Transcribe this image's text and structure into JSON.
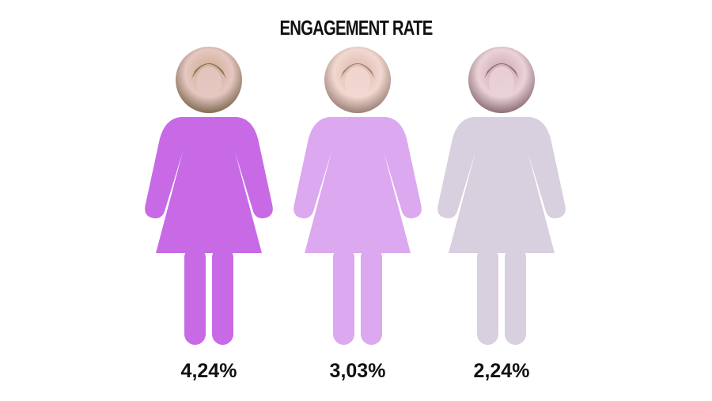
{
  "chart_data": {
    "type": "pictograph",
    "title": "ENGAGEMENT RATE",
    "categories": [
      "",
      "",
      ""
    ],
    "series": [
      {
        "values": [
          4.24,
          3.03,
          2.24
        ]
      }
    ],
    "value_labels": [
      "4,24%",
      "3,03%",
      "2,24%"
    ],
    "colors": [
      "#c86ae6",
      "#dca8ef",
      "#d8cfdf"
    ],
    "portrait_tints": [
      [
        "#6e5a3c",
        "#c9a886",
        "#e6c7c2"
      ],
      [
        "#8a6f66",
        "#d9b3a6",
        "#f1d8d0"
      ],
      [
        "#7b5a63",
        "#caa0a8",
        "#ead3d8"
      ]
    ]
  }
}
